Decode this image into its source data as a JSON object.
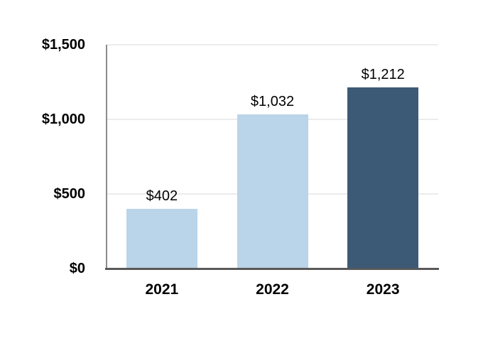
{
  "chart_data": {
    "type": "bar",
    "title": "",
    "xlabel": "",
    "ylabel": "",
    "categories": [
      "2021",
      "2022",
      "2023"
    ],
    "values": [
      402,
      1032,
      1212
    ],
    "value_labels": [
      "$402",
      "$1,032",
      "$1,212"
    ],
    "bar_colors": [
      "#BAD4E9",
      "#BAD4E9",
      "#3C5A76"
    ],
    "y_axis": {
      "min": 0,
      "max": 1500,
      "ticks": [
        {
          "value": 0,
          "label": "$0"
        },
        {
          "value": 500,
          "label": "$500"
        },
        {
          "value": 1000,
          "label": "$1,000"
        },
        {
          "value": 1500,
          "label": "$1,500"
        }
      ]
    },
    "grid": "horizontal",
    "legend": "none",
    "colors": {
      "background": "#FFFFFF",
      "gridline": "#ECECEC",
      "y_axis_line": "#8C8C8C",
      "x_axis_line": "#595959",
      "label_text": "#000000"
    }
  }
}
